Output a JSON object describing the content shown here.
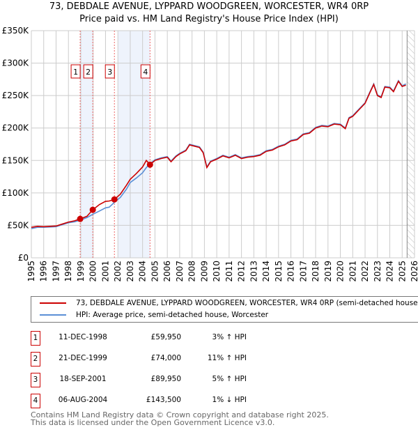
{
  "chart_data": {
    "type": "line",
    "title": "73, DEBDALE AVENUE, LYPPARD WOODGREEN, WORCESTER, WR4 0RP",
    "subtitle": "Price paid vs. HM Land Registry's House Price Index (HPI)",
    "xlim": [
      1995,
      2026
    ],
    "ylim": [
      0,
      350000
    ],
    "y_ticks": [
      0,
      50000,
      100000,
      150000,
      200000,
      250000,
      300000,
      350000
    ],
    "y_tick_labels": [
      "£0",
      "£50K",
      "£100K",
      "£150K",
      "£200K",
      "£250K",
      "£300K",
      "£350K"
    ],
    "x_ticks": [
      "1995",
      "1996",
      "1997",
      "1998",
      "1999",
      "2000",
      "2001",
      "2002",
      "2003",
      "2004",
      "2005",
      "2006",
      "2007",
      "2008",
      "2009",
      "2010",
      "2011",
      "2012",
      "2013",
      "2014",
      "2015",
      "2016",
      "2017",
      "2018",
      "2019",
      "2020",
      "2021",
      "2022",
      "2023",
      "2024",
      "2025",
      "2026"
    ],
    "grid": true,
    "forecast_start": 2025.4,
    "series": [
      {
        "name": "73, DEBDALE AVENUE, LYPPARD WOODGREEN, WORCESTER, WR4 0RP (semi-detached house)",
        "color": "#cc0000",
        "x": [
          1995,
          1995.5,
          1996,
          1997,
          1997.5,
          1998,
          1998.5,
          1998.95,
          1999.5,
          1999.97,
          2000.5,
          2001,
          2001.3,
          2001.72,
          2002.2,
          2002.7,
          2003,
          2003.5,
          2004,
          2004.3,
          2004.6,
          2005,
          2005.5,
          2006,
          2006.3,
          2006.7,
          2007,
          2007.5,
          2007.8,
          2008.2,
          2008.6,
          2008.9,
          2009.2,
          2009.5,
          2010,
          2010.5,
          2011,
          2011.5,
          2012,
          2012.5,
          2013,
          2013.5,
          2014,
          2014.5,
          2015,
          2015.5,
          2016,
          2016.5,
          2017,
          2017.5,
          2018,
          2018.5,
          2019,
          2019.5,
          2020,
          2020.4,
          2020.7,
          2021,
          2021.5,
          2022,
          2022.4,
          2022.7,
          2023,
          2023.3,
          2023.6,
          2024,
          2024.3,
          2024.7,
          2025,
          2025.3
        ],
        "y": [
          47000,
          48500,
          48000,
          49000,
          52000,
          55000,
          57000,
          59950,
          64000,
          74000,
          82000,
          87000,
          87500,
          89950,
          98000,
          112000,
          121000,
          130000,
          140000,
          150000,
          143500,
          150000,
          153000,
          155000,
          148000,
          156000,
          160000,
          165000,
          174000,
          172000,
          170000,
          162000,
          139000,
          148000,
          152000,
          157000,
          154000,
          158000,
          153000,
          155000,
          156000,
          158000,
          164000,
          166000,
          171000,
          174000,
          180000,
          182000,
          190000,
          192000,
          200000,
          203000,
          202000,
          206000,
          205000,
          199000,
          215000,
          218000,
          228000,
          238000,
          255000,
          267000,
          250000,
          247000,
          263000,
          262000,
          256000,
          272000,
          264000,
          266000
        ]
      },
      {
        "name": "HPI: Average price, semi-detached house, Worcester",
        "color": "#5b8fd6",
        "x": [
          1995,
          1995.5,
          1996,
          1997,
          1997.5,
          1998,
          1998.5,
          1998.95,
          1999.5,
          1999.97,
          2000.5,
          2001,
          2001.3,
          2001.72,
          2002.2,
          2002.7,
          2003,
          2003.5,
          2004,
          2004.3,
          2004.6,
          2005,
          2005.5,
          2006,
          2006.3,
          2006.7,
          2007,
          2007.5,
          2007.8,
          2008.2,
          2008.6,
          2008.9,
          2009.2,
          2009.5,
          2010,
          2010.5,
          2011,
          2011.5,
          2012,
          2012.5,
          2013,
          2013.5,
          2014,
          2014.5,
          2015,
          2015.5,
          2016,
          2016.5,
          2017,
          2017.5,
          2018,
          2018.5,
          2019,
          2019.5,
          2020,
          2020.4,
          2020.7,
          2021,
          2021.5,
          2022,
          2022.4,
          2022.7,
          2023,
          2023.3,
          2023.6,
          2024,
          2024.3,
          2024.7,
          2025,
          2025.3
        ],
        "y": [
          45000,
          47000,
          47000,
          48000,
          51000,
          54000,
          55500,
          58000,
          62000,
          67000,
          72000,
          77000,
          78000,
          85500,
          93000,
          106000,
          116000,
          123000,
          131000,
          139000,
          145000,
          151000,
          154000,
          156000,
          149000,
          157000,
          161000,
          166000,
          175000,
          173000,
          171000,
          163000,
          140000,
          149000,
          153000,
          158000,
          155000,
          159000,
          154000,
          156000,
          157000,
          159000,
          165000,
          167000,
          172000,
          175000,
          181000,
          183000,
          191000,
          193000,
          201000,
          204000,
          203000,
          207000,
          206000,
          200000,
          216000,
          219000,
          229000,
          239000,
          256000,
          268000,
          251000,
          248000,
          264000,
          263000,
          257000,
          273000,
          265000,
          268000
        ]
      }
    ],
    "sales": [
      {
        "label": "1",
        "x": 1998.95,
        "y": 59950
      },
      {
        "label": "2",
        "x": 1999.97,
        "y": 74000
      },
      {
        "label": "3",
        "x": 2001.72,
        "y": 89950
      },
      {
        "label": "4",
        "x": 2004.6,
        "y": 143500
      }
    ],
    "shaded_ranges": [
      [
        1998.95,
        1999.97
      ],
      [
        2002.0,
        2004.6
      ]
    ]
  },
  "transactions": [
    {
      "num": "1",
      "date": "11-DEC-1998",
      "price": "£59,950",
      "hpi": "3% ↑ HPI"
    },
    {
      "num": "2",
      "date": "21-DEC-1999",
      "price": "£74,000",
      "hpi": "11% ↑ HPI"
    },
    {
      "num": "3",
      "date": "18-SEP-2001",
      "price": "£89,950",
      "hpi": "5% ↑ HPI"
    },
    {
      "num": "4",
      "date": "06-AUG-2004",
      "price": "£143,500",
      "hpi": "1% ↓ HPI"
    }
  ],
  "footer": {
    "line1": "Contains HM Land Registry data © Crown copyright and database right 2025.",
    "line2": "This data is licensed under the Open Government Licence v3.0."
  }
}
